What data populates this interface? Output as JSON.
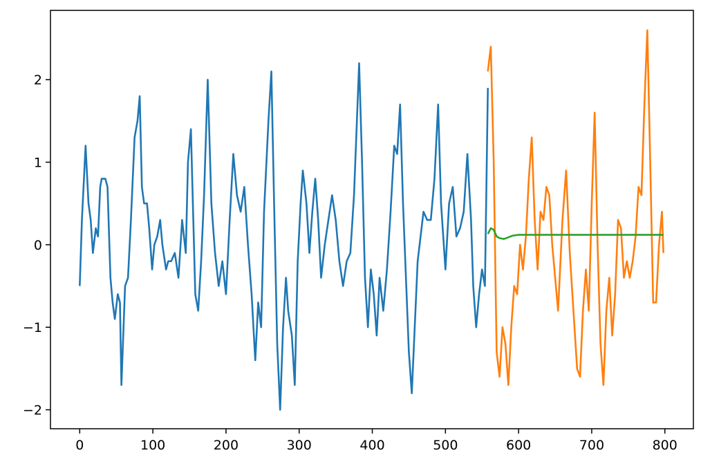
{
  "chart_data": {
    "type": "line",
    "xlim": [
      -40,
      839
    ],
    "ylim": [
      -2.23,
      2.84
    ],
    "xticks": [
      0,
      100,
      200,
      300,
      400,
      500,
      600,
      700,
      800
    ],
    "yticks": [
      {
        "value": -2,
        "label": "−2"
      },
      {
        "value": -1,
        "label": "−1"
      },
      0,
      1,
      2
    ],
    "grid": false,
    "series": [
      {
        "color": "#1f77b4",
        "x": [
          0,
          3,
          8,
          12,
          15,
          18,
          22,
          25,
          28,
          30,
          35,
          38,
          42,
          45,
          48,
          52,
          55,
          57,
          62,
          66,
          70,
          75,
          79,
          82,
          85,
          88,
          92,
          95,
          99,
          102,
          106,
          110,
          113,
          118,
          121,
          125,
          130,
          135,
          140,
          145,
          148,
          152,
          155,
          158,
          162,
          166,
          170,
          175,
          180,
          185,
          190,
          195,
          200,
          205,
          210,
          215,
          220,
          225,
          230,
          235,
          240,
          244,
          248,
          252,
          258,
          262,
          266,
          270,
          274,
          278,
          282,
          285,
          290,
          294,
          298,
          302,
          305,
          310,
          314,
          318,
          322,
          326,
          330,
          335,
          340,
          345,
          350,
          355,
          360,
          365,
          370,
          375,
          382,
          386,
          390,
          394,
          398,
          402,
          406,
          410,
          415,
          420,
          425,
          430,
          434,
          438,
          442,
          446,
          450,
          454,
          458,
          462,
          466,
          470,
          475,
          480,
          485,
          490,
          494,
          500,
          505,
          510,
          515,
          520,
          525,
          530,
          535,
          538,
          542,
          546,
          550,
          554,
          558
        ],
        "values": [
          -0.5,
          0.3,
          1.2,
          0.5,
          0.3,
          -0.1,
          0.2,
          0.1,
          0.7,
          0.8,
          0.8,
          0.7,
          -0.4,
          -0.7,
          -0.9,
          -0.6,
          -0.7,
          -1.7,
          -0.5,
          -0.4,
          0.3,
          1.3,
          1.5,
          1.8,
          0.7,
          0.5,
          0.5,
          0.2,
          -0.3,
          0,
          0.1,
          0.3,
          0,
          -0.3,
          -0.2,
          -0.2,
          -0.1,
          -0.4,
          0.3,
          -0.1,
          1,
          1.4,
          0.4,
          -0.6,
          -0.8,
          -0.2,
          0.6,
          2.0,
          0.5,
          -0.1,
          -0.5,
          -0.2,
          -0.6,
          0.3,
          1.1,
          0.6,
          0.4,
          0.7,
          0,
          -0.6,
          -1.4,
          -0.7,
          -1.0,
          0.4,
          1.5,
          2.1,
          0.4,
          -1.2,
          -2.0,
          -1.0,
          -0.4,
          -0.8,
          -1.1,
          -1.7,
          -0.2,
          0.5,
          0.9,
          0.5,
          -0.1,
          0.4,
          0.8,
          0.3,
          -0.4,
          0,
          0.3,
          0.6,
          0.3,
          -0.2,
          -0.5,
          -0.2,
          -0.1,
          0.6,
          2.2,
          1.0,
          -0.4,
          -1.0,
          -0.3,
          -0.6,
          -1.1,
          -0.4,
          -0.8,
          -0.3,
          0.4,
          1.2,
          1.1,
          1.7,
          0.5,
          -0.4,
          -1.3,
          -1.8,
          -1.0,
          -0.2,
          0.1,
          0.4,
          0.3,
          0.3,
          0.8,
          1.7,
          0.5,
          -0.3,
          0.5,
          0.7,
          0.1,
          0.2,
          0.4,
          1.1,
          0.3,
          -0.5,
          -1.0,
          -0.6,
          -0.3,
          -0.5,
          1.9
        ]
      },
      {
        "color": "#ff7f0e",
        "x": [
          558,
          562,
          566,
          570,
          574,
          578,
          582,
          586,
          590,
          594,
          598,
          602,
          606,
          610,
          614,
          618,
          622,
          626,
          630,
          634,
          638,
          642,
          646,
          650,
          654,
          660,
          665,
          670,
          675,
          680,
          684,
          688,
          692,
          696,
          700,
          704,
          708,
          712,
          716,
          720,
          724,
          728,
          732,
          736,
          740,
          744,
          748,
          752,
          756,
          760,
          764,
          768,
          772,
          776,
          780,
          784,
          788,
          792,
          796,
          798
        ],
        "values": [
          2.1,
          2.4,
          1.0,
          -1.3,
          -1.6,
          -1.0,
          -1.2,
          -1.7,
          -1.0,
          -0.5,
          -0.6,
          0,
          -0.3,
          0.1,
          0.8,
          1.3,
          0.3,
          -0.3,
          0.4,
          0.3,
          0.7,
          0.6,
          0,
          -0.4,
          -0.8,
          0.3,
          0.9,
          -0.1,
          -0.8,
          -1.5,
          -1.6,
          -0.8,
          -0.3,
          -0.8,
          0.5,
          1.6,
          0,
          -1.2,
          -1.7,
          -0.8,
          -0.4,
          -1.1,
          -0.6,
          0.3,
          0.2,
          -0.4,
          -0.2,
          -0.4,
          -0.2,
          0.1,
          0.7,
          0.6,
          1.7,
          2.6,
          1.0,
          -0.7,
          -0.7,
          0,
          0.4,
          -0.1
        ]
      },
      {
        "color": "#2ca02c",
        "x": [
          558,
          562,
          566,
          570,
          574,
          580,
          586,
          592,
          600,
          650,
          700,
          750,
          798
        ],
        "values": [
          0.13,
          0.2,
          0.18,
          0.1,
          0.08,
          0.07,
          0.09,
          0.11,
          0.12,
          0.12,
          0.12,
          0.12,
          0.12
        ]
      }
    ]
  }
}
